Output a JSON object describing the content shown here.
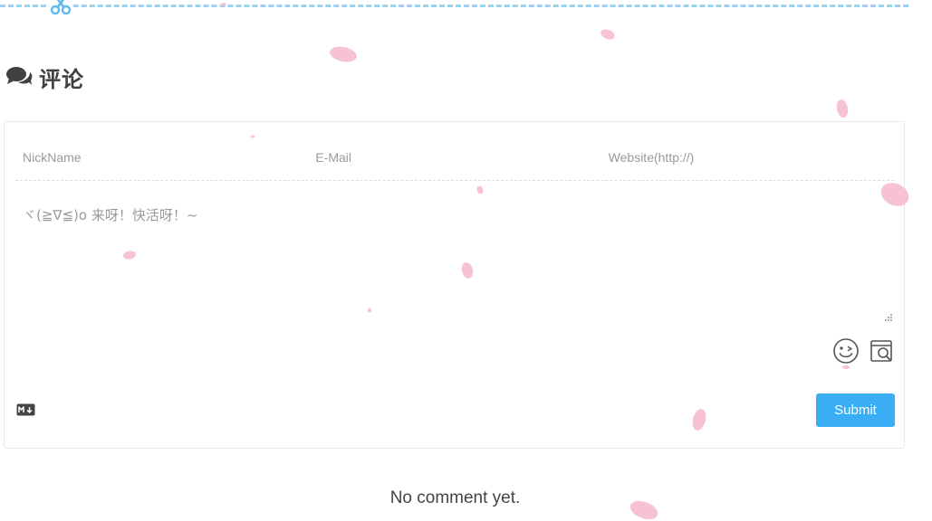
{
  "header": {
    "title": "评论",
    "icon": "comments-icon"
  },
  "divider": {
    "icon": "scissors-icon",
    "color": "#9ad0f0"
  },
  "comment_form": {
    "nickname_placeholder": "NickName",
    "email_placeholder": "E-Mail",
    "website_placeholder": "Website(http://)",
    "editor_placeholder": "ヾ(≧∇≦)o 来呀！快活呀！~",
    "emoji_icon": "emoji-wink-icon",
    "preview_icon": "preview-icon",
    "markdown_icon": "markdown-icon",
    "submit_label": "Submit",
    "accent_color": "#3aaef4"
  },
  "comments": {
    "empty_text": "No comment yet."
  }
}
